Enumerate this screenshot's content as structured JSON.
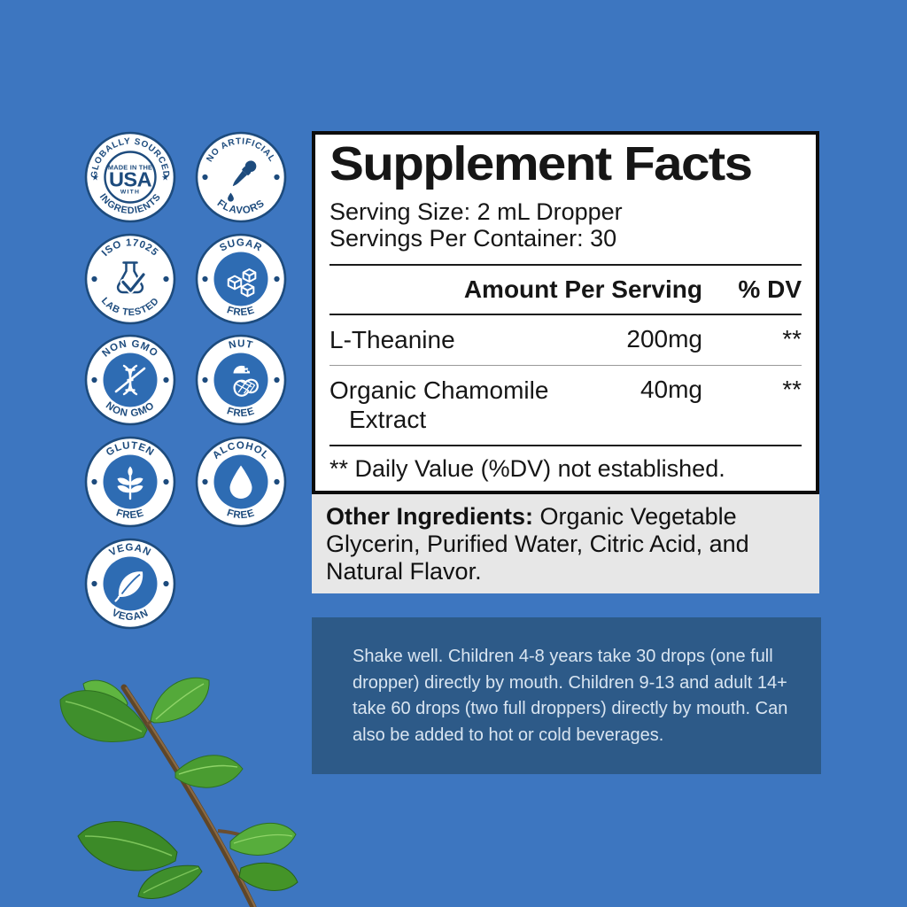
{
  "colors": {
    "background": "#3d76c0",
    "badge_navy": "#1d4b7d",
    "badge_fill_blue": "#2e6cb3",
    "panel_bg": "#ffffff",
    "panel_border": "#0c0c0c",
    "gray_box_bg": "#e7e7e7",
    "directions_bg": "#2d5a88",
    "directions_text": "#d9e5f1",
    "leaf_green": "#4a9c31",
    "stem_brown": "#5f4628"
  },
  "badges": [
    {
      "id": "made-in-usa",
      "top": "GLOBALLY SOURCED",
      "bottom": "INGREDIENTS",
      "center": [
        "MADE IN THE",
        "USA",
        "WITH"
      ],
      "icon": "usa-text",
      "style": "outline",
      "side": "star"
    },
    {
      "id": "no-artificial-flavors",
      "top": "NO ARTIFICIAL",
      "bottom": "FLAVORS",
      "icon": "dropper",
      "style": "outline",
      "side": "dot"
    },
    {
      "id": "iso-17025-lab-tested",
      "top": "ISO 17025",
      "bottom": "LAB TESTED",
      "icon": "flask",
      "style": "outline",
      "side": "dot"
    },
    {
      "id": "sugar-free",
      "top": "SUGAR",
      "bottom": "FREE",
      "icon": "sugar-cubes",
      "style": "filled",
      "side": "dot"
    },
    {
      "id": "non-gmo",
      "top": "NON GMO",
      "bottom": "NON GMO",
      "icon": "dna",
      "style": "filled",
      "side": "dot"
    },
    {
      "id": "nut-free",
      "top": "NUT",
      "bottom": "FREE",
      "icon": "peanut",
      "style": "filled",
      "side": "dot"
    },
    {
      "id": "gluten-free",
      "top": "GLUTEN",
      "bottom": "FREE",
      "icon": "wheat",
      "style": "filled",
      "side": "dot"
    },
    {
      "id": "alcohol-free",
      "top": "ALCOHOL",
      "bottom": "FREE",
      "icon": "drop",
      "style": "filled",
      "side": "dot"
    },
    {
      "id": "vegan",
      "top": "VEGAN",
      "bottom": "VEGAN",
      "icon": "leaf",
      "style": "filled",
      "side": "dot"
    }
  ],
  "supplement_facts": {
    "title": "Supplement Facts",
    "serving_size": "Serving Size: 2 mL Dropper",
    "servings_per_container": "Servings Per Container: 30",
    "col_amount": "Amount Per Serving",
    "col_dv": "% DV",
    "rows": [
      {
        "name": "L-Theanine",
        "name_line2": "",
        "amount": "200mg",
        "dv": "**"
      },
      {
        "name": "Organic Chamomile",
        "name_line2": "Extract",
        "amount": "40mg",
        "dv": "**"
      }
    ],
    "footnote": "** Daily Value (%DV) not established."
  },
  "other_ingredients": {
    "label": "Other Ingredients:",
    "text": " Organic Vegetable Glycerin, Purified Water, Citric Acid, and Natural Flavor."
  },
  "directions": {
    "text": "Shake well. Children 4-8 years take 30 drops (one full dropper) directly by mouth. Children 9-13 and adult 14+ take 60 drops (two full droppers) directly by mouth. Can also be added to hot or cold beverages."
  }
}
